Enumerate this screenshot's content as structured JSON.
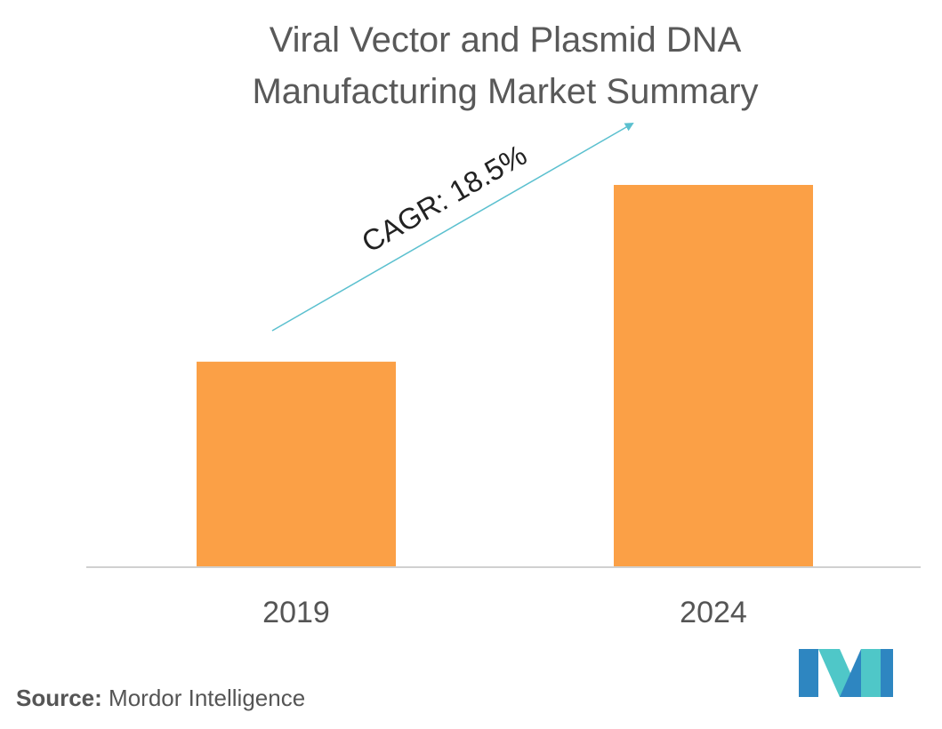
{
  "chart_data": {
    "type": "bar",
    "title": "Viral Vector and Plasmid DNA Manufacturing Market Summary",
    "title_lines": [
      "Viral Vector and Plasmid DNA",
      "Manufacturing Market Summary"
    ],
    "categories": [
      "2019",
      "2024"
    ],
    "values": [
      1.0,
      1.86
    ],
    "ylim": [
      0,
      2.0
    ],
    "grid": false,
    "xlabel": "",
    "ylabel": "",
    "annotation": "CAGR: 18.5%",
    "colors": {
      "bar": "#FBA046",
      "arrow": "#5BC0CF",
      "axis": "#d0d0d0"
    }
  },
  "source": {
    "label": "Source:",
    "text": "Mordor Intelligence"
  },
  "logo": {
    "name": "mordor-intelligence-logo-icon",
    "colors": [
      "#2E86C1",
      "#4FC7C8"
    ]
  }
}
